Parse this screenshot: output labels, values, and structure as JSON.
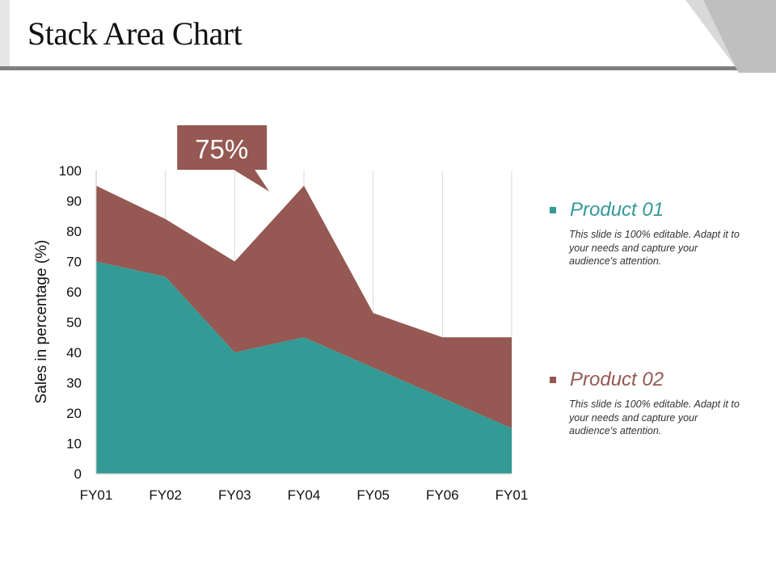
{
  "slide": {
    "title": "Stack Area Chart",
    "accent_color": "#7f7f7f",
    "corner_color": "#bfbfbf"
  },
  "callout": {
    "label": "75%",
    "color": "#955852"
  },
  "legend": [
    {
      "name": "Product 01",
      "color": "#339a96",
      "description": "This slide is 100% editable. Adapt it to your needs and capture your audience's attention."
    },
    {
      "name": "Product 02",
      "color": "#955852",
      "description": "This slide is 100% editable. Adapt it to your needs and capture your audience's attention."
    }
  ],
  "chart_data": {
    "type": "area",
    "stacked": true,
    "title": "",
    "xlabel": "",
    "ylabel": "Sales in percentage (%)",
    "categories": [
      "FY01",
      "FY02",
      "FY03",
      "FY04",
      "FY05",
      "FY06",
      "FY01"
    ],
    "ylim": [
      0,
      100
    ],
    "yticks": [
      0,
      10,
      20,
      30,
      40,
      50,
      60,
      70,
      80,
      90,
      100
    ],
    "grid": "vertical",
    "series": [
      {
        "name": "Product 01",
        "color": "#339a96",
        "values": [
          70,
          65,
          40,
          45,
          35,
          25,
          15
        ]
      },
      {
        "name": "Product 02",
        "color": "#955852",
        "values": [
          25,
          19,
          30,
          50,
          18,
          20,
          30
        ]
      }
    ],
    "annotation": {
      "text": "75%",
      "category_index": 2.5
    }
  }
}
